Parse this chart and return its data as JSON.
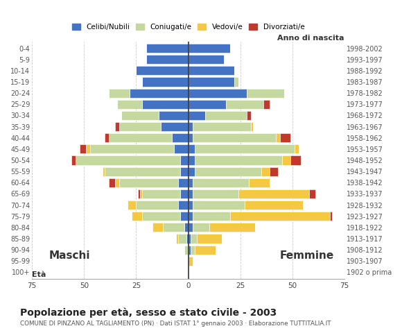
{
  "age_groups": [
    "0-4",
    "5-9",
    "10-14",
    "15-19",
    "20-24",
    "25-29",
    "30-34",
    "35-39",
    "40-44",
    "45-49",
    "50-54",
    "55-59",
    "60-64",
    "65-69",
    "70-74",
    "75-79",
    "80-84",
    "85-89",
    "90-94",
    "95-99",
    "100+"
  ],
  "birth_years": [
    "1998-2002",
    "1993-1997",
    "1988-1992",
    "1983-1987",
    "1978-1982",
    "1973-1977",
    "1968-1972",
    "1963-1967",
    "1958-1962",
    "1953-1957",
    "1948-1952",
    "1943-1947",
    "1938-1942",
    "1933-1937",
    "1928-1932",
    "1923-1927",
    "1918-1922",
    "1913-1917",
    "1908-1912",
    "1903-1907",
    "1902 o prima"
  ],
  "male_celibe": [
    20,
    20,
    25,
    22,
    28,
    22,
    14,
    13,
    8,
    7,
    4,
    4,
    5,
    4,
    5,
    4,
    2,
    1,
    0,
    0,
    0
  ],
  "male_coniugato": [
    0,
    0,
    0,
    0,
    10,
    12,
    18,
    20,
    30,
    40,
    50,
    36,
    28,
    18,
    20,
    18,
    10,
    4,
    2,
    0,
    0
  ],
  "male_vedovo": [
    0,
    0,
    0,
    0,
    0,
    0,
    0,
    0,
    0,
    2,
    0,
    1,
    2,
    1,
    4,
    5,
    5,
    1,
    0,
    0,
    0
  ],
  "male_divorziato": [
    0,
    0,
    0,
    0,
    0,
    0,
    0,
    2,
    2,
    3,
    2,
    0,
    3,
    1,
    0,
    0,
    0,
    0,
    0,
    0,
    0
  ],
  "fem_nubile": [
    20,
    17,
    22,
    22,
    28,
    18,
    8,
    2,
    2,
    3,
    3,
    3,
    2,
    2,
    2,
    2,
    2,
    1,
    1,
    0,
    0
  ],
  "fem_coniugata": [
    0,
    0,
    0,
    2,
    18,
    18,
    20,
    28,
    40,
    48,
    42,
    32,
    27,
    22,
    25,
    18,
    8,
    3,
    2,
    0,
    0
  ],
  "fem_vedova": [
    0,
    0,
    0,
    0,
    0,
    0,
    0,
    1,
    2,
    2,
    4,
    4,
    10,
    34,
    28,
    48,
    22,
    12,
    10,
    2,
    0
  ],
  "fem_divorziata": [
    0,
    0,
    0,
    0,
    0,
    3,
    2,
    0,
    5,
    0,
    5,
    4,
    0,
    3,
    0,
    1,
    0,
    0,
    0,
    0,
    0
  ],
  "xlim": 75,
  "color_celibe": "#4472c4",
  "color_coniugato": "#c5d8a0",
  "color_vedovo": "#f5c842",
  "color_divorziato": "#c0392b",
  "title": "Popolazione per età, sesso e stato civile - 2003",
  "subtitle": "COMUNE DI PINZANO AL TAGLIAMENTO (PN) · Dati ISTAT 1° gennaio 2003 · Elaborazione TUTTITALIA.IT",
  "legend_labels": [
    "Celibi/Nubili",
    "Coniugati/e",
    "Vedovi/e",
    "Divorziati/e"
  ],
  "label_maschi": "Maschi",
  "label_femmine": "Femmine",
  "label_eta": "Età",
  "label_anno": "Anno di nascita",
  "bg_color": "#ffffff",
  "grid_color": "#aaaaaa"
}
